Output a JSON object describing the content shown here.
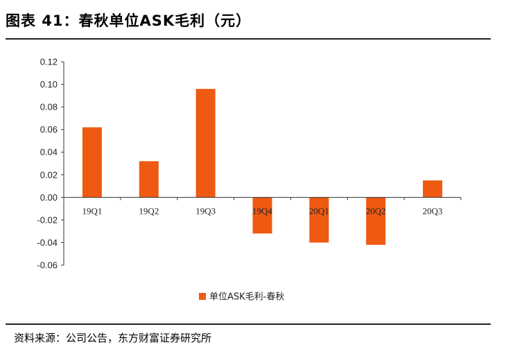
{
  "figure_title": "图表 41：春秋单位ASK毛利（元）",
  "source_text": "资料来源：公司公告，东方财富证券研究所",
  "colors": {
    "bar": "#ef5a12",
    "axis": "#333333"
  },
  "chart_data": {
    "type": "bar",
    "categories": [
      "19Q1",
      "19Q2",
      "19Q3",
      "19Q4",
      "20Q1",
      "20Q2",
      "20Q3"
    ],
    "series": [
      {
        "name": "单位ASK毛利-春秋",
        "values": [
          0.062,
          0.032,
          0.096,
          -0.032,
          -0.04,
          -0.042,
          0.015
        ]
      }
    ],
    "ylim": [
      -0.06,
      0.12
    ],
    "yticks": [
      "0.12",
      "0.10",
      "0.08",
      "0.06",
      "0.04",
      "0.02",
      "0.00",
      "-0.02",
      "-0.04",
      "-0.06"
    ],
    "legend_position": "bottom-center",
    "grid": false
  }
}
